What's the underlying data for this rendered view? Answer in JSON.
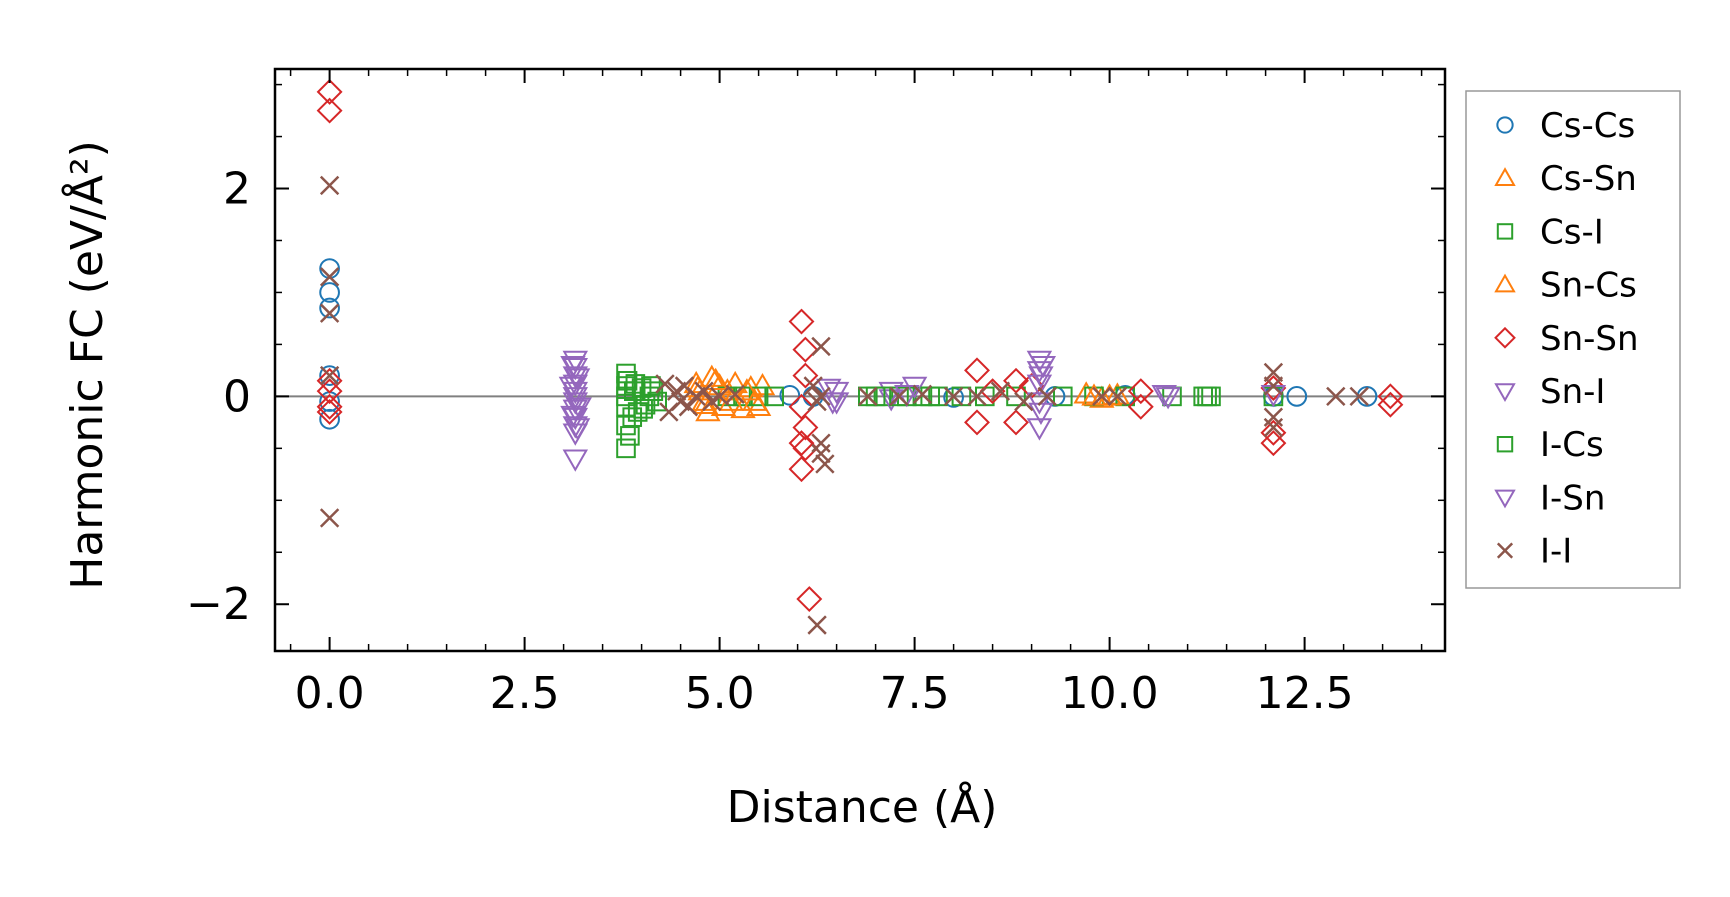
{
  "chart_data": {
    "type": "scatter",
    "title": "",
    "xlabel": "Distance (Å)",
    "ylabel": "Harmonic FC (eV/Å²)",
    "xlim": [
      -0.7,
      14.3
    ],
    "ylim": [
      -2.45,
      3.15
    ],
    "xticks": [
      0.0,
      2.5,
      5.0,
      7.5,
      10.0,
      12.5
    ],
    "xtick_labels": [
      "0.0",
      "2.5",
      "5.0",
      "7.5",
      "10.0",
      "12.5"
    ],
    "yticks": [
      -2,
      0,
      2
    ],
    "ytick_labels": [
      "−2",
      "0",
      "2"
    ],
    "grid": false,
    "zero_line": true,
    "legend_position": "outside-right",
    "series": [
      {
        "name": "Cs-Cs",
        "marker": "circle",
        "color": "#1f77b4",
        "points": [
          [
            0,
            1.23
          ],
          [
            0,
            1.0
          ],
          [
            0,
            0.85
          ],
          [
            0,
            0.2
          ],
          [
            0,
            -0.05
          ],
          [
            0,
            -0.22
          ],
          [
            5.9,
            0.01
          ],
          [
            6.2,
            0.0
          ],
          [
            8.0,
            -0.01
          ],
          [
            9.3,
            0.0
          ],
          [
            10.2,
            0.01
          ],
          [
            12.1,
            0.0
          ],
          [
            12.4,
            0.0
          ],
          [
            13.3,
            0.0
          ]
        ]
      },
      {
        "name": "Cs-Sn",
        "marker": "triangle-up",
        "color": "#ff7f0e",
        "points": [
          [
            4.7,
            0.12
          ],
          [
            4.75,
            0.05
          ],
          [
            4.8,
            -0.05
          ],
          [
            4.85,
            -0.15
          ],
          [
            4.9,
            0.18
          ],
          [
            5.0,
            0.1
          ],
          [
            5.05,
            -0.1
          ],
          [
            5.1,
            0.05
          ],
          [
            5.2,
            0.12
          ],
          [
            5.3,
            -0.12
          ],
          [
            5.4,
            0.08
          ],
          [
            5.5,
            -0.1
          ],
          [
            5.55,
            0.1
          ],
          [
            9.7,
            0.02
          ],
          [
            9.9,
            -0.02
          ],
          [
            10.1,
            0.01
          ]
        ]
      },
      {
        "name": "Cs-I",
        "marker": "square",
        "color": "#2ca02c",
        "points": [
          [
            3.8,
            0.22
          ],
          [
            3.8,
            0.1
          ],
          [
            3.8,
            0.0
          ],
          [
            3.8,
            -0.1
          ],
          [
            3.8,
            -0.28
          ],
          [
            3.8,
            -0.5
          ],
          [
            3.85,
            -0.38
          ],
          [
            3.9,
            0.05
          ],
          [
            3.95,
            -0.15
          ],
          [
            4.0,
            0.08
          ],
          [
            4.05,
            -0.08
          ],
          [
            4.1,
            0.0
          ],
          [
            4.15,
            0.05
          ],
          [
            4.2,
            -0.05
          ],
          [
            5.1,
            0.0
          ],
          [
            5.3,
            0.0
          ],
          [
            5.5,
            0.0
          ],
          [
            5.7,
            0.0
          ],
          [
            6.9,
            0.0
          ],
          [
            7.1,
            0.0
          ],
          [
            7.4,
            0.0
          ],
          [
            7.6,
            0.0
          ],
          [
            7.8,
            0.0
          ],
          [
            8.1,
            0.0
          ],
          [
            8.4,
            0.0
          ],
          [
            8.8,
            0.0
          ],
          [
            9.4,
            0.0
          ],
          [
            9.8,
            0.0
          ],
          [
            10.2,
            0.0
          ],
          [
            10.8,
            0.0
          ],
          [
            11.2,
            0.0
          ],
          [
            11.3,
            0.0
          ],
          [
            12.1,
            0.0
          ]
        ]
      },
      {
        "name": "Sn-Cs",
        "marker": "triangle-up",
        "color": "#ff7f0e",
        "points": [
          [
            4.72,
            0.08
          ],
          [
            4.82,
            -0.08
          ],
          [
            4.95,
            0.15
          ],
          [
            5.15,
            -0.05
          ],
          [
            5.35,
            0.05
          ],
          [
            5.45,
            -0.05
          ],
          [
            9.8,
            0.0
          ],
          [
            10.0,
            0.0
          ]
        ]
      },
      {
        "name": "Sn-Sn",
        "marker": "diamond",
        "color": "#d62728",
        "points": [
          [
            0,
            2.93
          ],
          [
            0,
            2.75
          ],
          [
            0,
            0.15
          ],
          [
            0,
            0.05
          ],
          [
            0,
            -0.1
          ],
          [
            0,
            -0.15
          ],
          [
            6.05,
            0.72
          ],
          [
            6.1,
            0.45
          ],
          [
            6.1,
            0.2
          ],
          [
            6.05,
            -0.1
          ],
          [
            6.1,
            -0.3
          ],
          [
            6.05,
            -0.45
          ],
          [
            6.1,
            -0.5
          ],
          [
            6.05,
            -0.7
          ],
          [
            6.15,
            -1.95
          ],
          [
            8.3,
            0.25
          ],
          [
            8.3,
            -0.25
          ],
          [
            8.5,
            0.05
          ],
          [
            8.8,
            0.15
          ],
          [
            8.8,
            -0.25
          ],
          [
            9.0,
            0.1
          ],
          [
            10.4,
            0.05
          ],
          [
            10.4,
            -0.1
          ],
          [
            12.1,
            0.08
          ],
          [
            12.1,
            -0.35
          ],
          [
            12.1,
            -0.45
          ],
          [
            13.6,
            0.0
          ],
          [
            13.6,
            -0.08
          ]
        ]
      },
      {
        "name": "Sn-I",
        "marker": "triangle-down",
        "color": "#9467bd",
        "points": [
          [
            3.15,
            0.35
          ],
          [
            3.15,
            0.28
          ],
          [
            3.15,
            0.2
          ],
          [
            3.15,
            0.12
          ],
          [
            3.15,
            0.05
          ],
          [
            3.15,
            0.0
          ],
          [
            3.15,
            -0.05
          ],
          [
            3.15,
            -0.12
          ],
          [
            3.15,
            -0.2
          ],
          [
            3.15,
            -0.28
          ],
          [
            3.15,
            -0.35
          ],
          [
            3.15,
            -0.6
          ],
          [
            3.1,
            0.1
          ],
          [
            3.2,
            -0.1
          ],
          [
            6.4,
            0.08
          ],
          [
            6.45,
            -0.05
          ],
          [
            7.2,
            0.05
          ],
          [
            7.5,
            0.1
          ],
          [
            7.2,
            -0.02
          ],
          [
            9.1,
            0.35
          ],
          [
            9.1,
            0.25
          ],
          [
            9.1,
            0.12
          ],
          [
            9.1,
            -0.05
          ],
          [
            9.1,
            -0.3
          ],
          [
            9.15,
            0.3
          ],
          [
            10.7,
            0.02
          ],
          [
            12.1,
            0.02
          ]
        ]
      },
      {
        "name": "I-Cs",
        "marker": "square",
        "color": "#2ca02c",
        "points": [
          [
            3.82,
            0.15
          ],
          [
            3.88,
            -0.2
          ],
          [
            3.92,
            0.12
          ],
          [
            4.02,
            -0.12
          ],
          [
            4.12,
            0.1
          ],
          [
            7.0,
            0.0
          ],
          [
            7.3,
            0.0
          ],
          [
            7.7,
            0.0
          ],
          [
            11.25,
            0.0
          ]
        ]
      },
      {
        "name": "I-Sn",
        "marker": "triangle-down",
        "color": "#9467bd",
        "points": [
          [
            3.12,
            0.3
          ],
          [
            3.18,
            0.18
          ],
          [
            3.12,
            -0.18
          ],
          [
            3.18,
            -0.3
          ],
          [
            6.5,
            0.05
          ],
          [
            6.5,
            -0.05
          ],
          [
            7.4,
            0.02
          ],
          [
            9.12,
            0.2
          ],
          [
            9.12,
            -0.15
          ],
          [
            10.75,
            0.0
          ]
        ]
      },
      {
        "name": "I-I",
        "marker": "x",
        "color": "#8c564b",
        "points": [
          [
            0,
            2.03
          ],
          [
            0,
            1.15
          ],
          [
            0,
            0.8
          ],
          [
            0,
            0.2
          ],
          [
            0,
            -1.17
          ],
          [
            4.3,
            0.12
          ],
          [
            4.35,
            -0.15
          ],
          [
            4.45,
            0.05
          ],
          [
            4.5,
            -0.05
          ],
          [
            4.55,
            0.1
          ],
          [
            4.6,
            -0.1
          ],
          [
            4.7,
            0.0
          ],
          [
            4.8,
            0.05
          ],
          [
            4.9,
            -0.05
          ],
          [
            5.0,
            0.0
          ],
          [
            5.2,
            0.02
          ],
          [
            6.2,
            0.1
          ],
          [
            6.25,
            -0.05
          ],
          [
            6.3,
            0.48
          ],
          [
            6.3,
            0.0
          ],
          [
            6.3,
            -0.45
          ],
          [
            6.3,
            -0.55
          ],
          [
            6.35,
            -0.65
          ],
          [
            6.25,
            -2.2
          ],
          [
            6.9,
            0.0
          ],
          [
            7.3,
            0.0
          ],
          [
            7.6,
            0.02
          ],
          [
            8.0,
            0.0
          ],
          [
            8.3,
            0.0
          ],
          [
            8.6,
            0.05
          ],
          [
            8.9,
            -0.05
          ],
          [
            9.2,
            0.0
          ],
          [
            9.9,
            0.0
          ],
          [
            10.1,
            0.0
          ],
          [
            12.1,
            0.23
          ],
          [
            12.1,
            0.1
          ],
          [
            12.1,
            -0.2
          ],
          [
            12.1,
            -0.3
          ],
          [
            12.9,
            0.0
          ],
          [
            13.2,
            0.0
          ]
        ]
      }
    ]
  }
}
